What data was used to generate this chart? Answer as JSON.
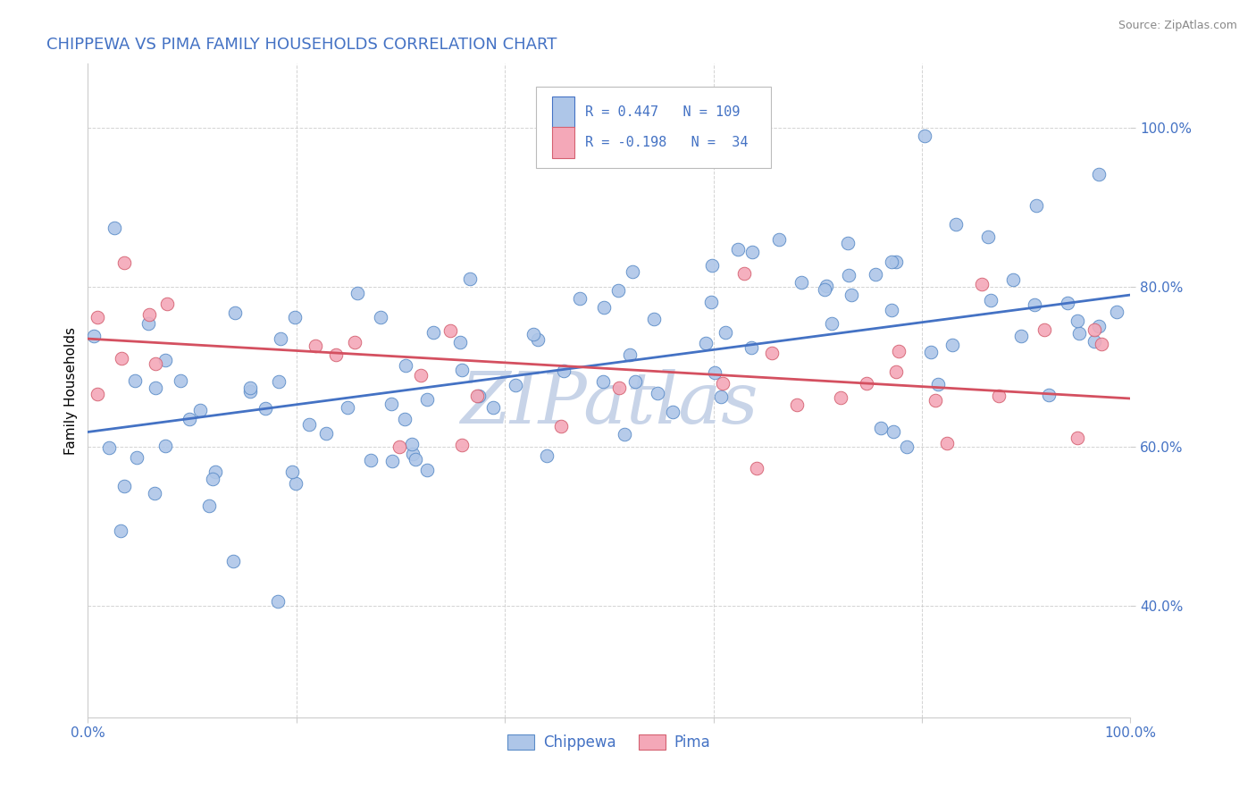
{
  "title": "CHIPPEWA VS PIMA FAMILY HOUSEHOLDS CORRELATION CHART",
  "source_text": "Source: ZipAtlas.com",
  "ylabel": "Family Households",
  "chippewa_R": 0.447,
  "chippewa_N": 109,
  "pima_R": -0.198,
  "pima_N": 34,
  "chippewa_color": "#aec6e8",
  "pima_color": "#f4a8b8",
  "chippewa_edge_color": "#5b8cc8",
  "pima_edge_color": "#d46070",
  "chippewa_line_color": "#4472c4",
  "pima_line_color": "#d45060",
  "title_color": "#4472c4",
  "tick_color": "#4472c4",
  "grid_color": "#c8c8c8",
  "watermark_color": "#c8d4e8",
  "source_color": "#888888",
  "xlim": [
    0.0,
    1.0
  ],
  "ylim": [
    0.26,
    1.08
  ],
  "yticks": [
    0.4,
    0.6,
    0.8,
    1.0
  ],
  "ytick_labels": [
    "40.0%",
    "60.0%",
    "80.0%",
    "100.0%"
  ],
  "xtick_vals": [
    0.0,
    0.2,
    0.4,
    0.6,
    0.8,
    1.0
  ],
  "xtick_labels": [
    "0.0%",
    "",
    "",
    "",
    "",
    "100.0%"
  ],
  "chippewa_line_x0": 0.0,
  "chippewa_line_y0": 0.618,
  "chippewa_line_x1": 1.0,
  "chippewa_line_y1": 0.79,
  "pima_line_x0": 0.0,
  "pima_line_y0": 0.735,
  "pima_line_x1": 1.0,
  "pima_line_y1": 0.66
}
